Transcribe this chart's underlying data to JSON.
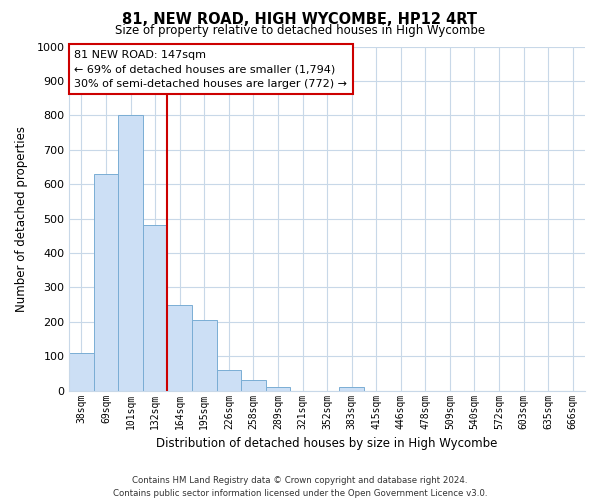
{
  "title": "81, NEW ROAD, HIGH WYCOMBE, HP12 4RT",
  "subtitle": "Size of property relative to detached houses in High Wycombe",
  "xlabel": "Distribution of detached houses by size in High Wycombe",
  "ylabel": "Number of detached properties",
  "bar_labels": [
    "38sqm",
    "69sqm",
    "101sqm",
    "132sqm",
    "164sqm",
    "195sqm",
    "226sqm",
    "258sqm",
    "289sqm",
    "321sqm",
    "352sqm",
    "383sqm",
    "415sqm",
    "446sqm",
    "478sqm",
    "509sqm",
    "540sqm",
    "572sqm",
    "603sqm",
    "635sqm",
    "666sqm"
  ],
  "bar_values": [
    110,
    630,
    800,
    480,
    248,
    205,
    60,
    30,
    10,
    0,
    0,
    10,
    0,
    0,
    0,
    0,
    0,
    0,
    0,
    0,
    0
  ],
  "bar_color": "#ccdff5",
  "bar_edge_color": "#7aadd4",
  "vline_x_idx": 3,
  "vline_color": "#cc0000",
  "annotation_title": "81 NEW ROAD: 147sqm",
  "annotation_line1": "← 69% of detached houses are smaller (1,794)",
  "annotation_line2": "30% of semi-detached houses are larger (772) →",
  "annotation_box_color": "#ffffff",
  "annotation_box_edge": "#cc0000",
  "ylim": [
    0,
    1000
  ],
  "yticks": [
    0,
    100,
    200,
    300,
    400,
    500,
    600,
    700,
    800,
    900,
    1000
  ],
  "footer_line1": "Contains HM Land Registry data © Crown copyright and database right 2024.",
  "footer_line2": "Contains public sector information licensed under the Open Government Licence v3.0.",
  "bg_color": "#ffffff",
  "grid_color": "#c8d8e8"
}
